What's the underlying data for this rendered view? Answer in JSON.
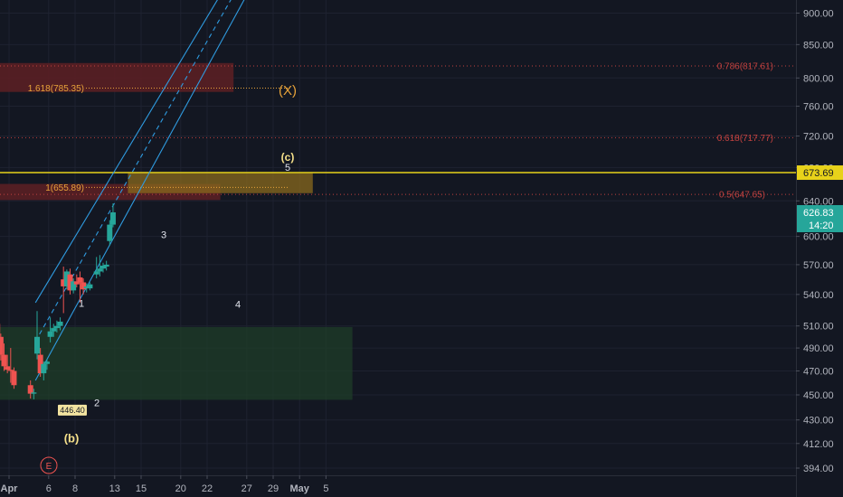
{
  "colors": {
    "background": "#131722",
    "grid": "#1e2230",
    "axis_text": "#b2b5be",
    "candle_up": "#26a69a",
    "candle_down": "#ef5350",
    "channel": "#2f9be0",
    "fib_text": "#e8a33a",
    "fib_red": "#c0413f",
    "resistance_line": "#e8d21a",
    "demand_zone": "#1f3d28",
    "supply_zone": "#5a1f24",
    "target_zone": "#8a6a1e",
    "price_tag": "#26a69a"
  },
  "chart_data": {
    "type": "candlestick",
    "price_axis": {
      "ticks": [
        394.0,
        412.0,
        430.0,
        450.0,
        470.0,
        490.0,
        510.0,
        540.0,
        570.0,
        600.0,
        640.0,
        680.0,
        720.0,
        760.0,
        800.0,
        850.0,
        900.0
      ],
      "tick_labels": [
        "394.00",
        "412.00",
        "430.00",
        "450.00",
        "470.00",
        "490.00",
        "510.00",
        "540.00",
        "570.00",
        "600.00",
        "640.00",
        "680.00",
        "720.00",
        "760.00",
        "800.00",
        "850.00",
        "900.00"
      ],
      "scale": "log",
      "range": [
        384,
        935
      ]
    },
    "time_axis": {
      "labels": [
        {
          "text": "Apr",
          "date": "2021-04-01"
        },
        {
          "text": "6",
          "date": "2021-04-06"
        },
        {
          "text": "8",
          "date": "2021-04-08"
        },
        {
          "text": "13",
          "date": "2021-04-13"
        },
        {
          "text": "15",
          "date": "2021-04-15"
        },
        {
          "text": "20",
          "date": "2021-04-20"
        },
        {
          "text": "22",
          "date": "2021-04-22"
        },
        {
          "text": "27",
          "date": "2021-04-27"
        },
        {
          "text": "29",
          "date": "2021-04-29"
        },
        {
          "text": "May",
          "date": "2021-05-03"
        },
        {
          "text": "5",
          "date": "2021-05-05"
        }
      ]
    },
    "current_price": {
      "value": 626.83,
      "label": "626.83",
      "countdown": "14:20"
    },
    "resistance_price": {
      "value": 673.69,
      "label": "673.69"
    },
    "candles": [
      {
        "t": 2021033111,
        "o": 523,
        "h": 524,
        "l": 508,
        "c": 512
      },
      {
        "t": 2021033113,
        "o": 512,
        "h": 514,
        "l": 496,
        "c": 500
      },
      {
        "t": 2021033115,
        "o": 500,
        "h": 503,
        "l": 479,
        "c": 484
      },
      {
        "t": 2021040109,
        "o": 484,
        "h": 494,
        "l": 470,
        "c": 474
      },
      {
        "t": 2021040111,
        "o": 474,
        "h": 484,
        "l": 468,
        "c": 471
      },
      {
        "t": 2021040113,
        "o": 471,
        "h": 490,
        "l": 460,
        "c": 470
      },
      {
        "t": 2021040115,
        "o": 470,
        "h": 473,
        "l": 455,
        "c": 458
      },
      {
        "t": 2021040509,
        "o": 458,
        "h": 462,
        "l": 447,
        "c": 451
      },
      {
        "t": 2021040511,
        "o": 451,
        "h": 455,
        "l": 446.4,
        "c": 452
      },
      {
        "t": 2021040513,
        "o": 485,
        "h": 524,
        "l": 480,
        "c": 500
      },
      {
        "t": 2021040515,
        "o": 484,
        "h": 490,
        "l": 465,
        "c": 468
      },
      {
        "t": 2021040609,
        "o": 468,
        "h": 478,
        "l": 462,
        "c": 476
      },
      {
        "t": 2021040611,
        "o": 476,
        "h": 480,
        "l": 471,
        "c": 478
      },
      {
        "t": 2021040613,
        "o": 500,
        "h": 518,
        "l": 495,
        "c": 505
      },
      {
        "t": 2021040615,
        "o": 505,
        "h": 512,
        "l": 500,
        "c": 508
      },
      {
        "t": 2021040709,
        "o": 508,
        "h": 515,
        "l": 504,
        "c": 510
      },
      {
        "t": 2021040711,
        "o": 510,
        "h": 518,
        "l": 506,
        "c": 514
      },
      {
        "t": 2021040713,
        "o": 555,
        "h": 568,
        "l": 522,
        "c": 548
      },
      {
        "t": 2021040715,
        "o": 548,
        "h": 565,
        "l": 545,
        "c": 563
      },
      {
        "t": 2021040809,
        "o": 560,
        "h": 566,
        "l": 540,
        "c": 544
      },
      {
        "t": 2021040811,
        "o": 544,
        "h": 556,
        "l": 541,
        "c": 553
      },
      {
        "t": 2021040813,
        "o": 553,
        "h": 560,
        "l": 547,
        "c": 550
      },
      {
        "t": 2021040815,
        "o": 557,
        "h": 563,
        "l": 532,
        "c": 552
      },
      {
        "t": 2021040909,
        "o": 552,
        "h": 556,
        "l": 540,
        "c": 545
      },
      {
        "t": 2021040911,
        "o": 546,
        "h": 551,
        "l": 542,
        "c": 548
      },
      {
        "t": 2021040913,
        "o": 546,
        "h": 552,
        "l": 544,
        "c": 550
      },
      {
        "t": 2021041209,
        "o": 560,
        "h": 578,
        "l": 556,
        "c": 563
      },
      {
        "t": 2021041211,
        "o": 563,
        "h": 580,
        "l": 558,
        "c": 566
      },
      {
        "t": 2021041213,
        "o": 566,
        "h": 572,
        "l": 562,
        "c": 569
      },
      {
        "t": 2021041215,
        "o": 568,
        "h": 574,
        "l": 564,
        "c": 570
      },
      {
        "t": 2021041309,
        "o": 595,
        "h": 618,
        "l": 590,
        "c": 613
      },
      {
        "t": 2021041311,
        "o": 613,
        "h": 637,
        "l": 610,
        "c": 626.83
      }
    ],
    "zones": [
      {
        "name": "demand",
        "from": "2021-03-31",
        "to": "2021-05-07",
        "low": 446,
        "high": 509
      },
      {
        "name": "supply-upper",
        "from": "2021-03-31",
        "to": "2021-04-25",
        "low": 780,
        "high": 822
      },
      {
        "name": "supply-lower",
        "from": "2021-03-31",
        "to": "2021-04-23",
        "low": 641,
        "high": 660
      },
      {
        "name": "target",
        "from": "2021-04-14",
        "to": "2021-05-04",
        "low": 649,
        "high": 673
      }
    ],
    "fib_levels": [
      {
        "label": "0.786(817.61)",
        "value": 817.61
      },
      {
        "label": "0.618(717.77)",
        "value": 717.77
      },
      {
        "label": "0.5(647.65)",
        "value": 647.65
      },
      {
        "label": "1.618(785.35)",
        "value": 785.35
      },
      {
        "label": "1(655.89)",
        "value": 655.89
      }
    ],
    "wave_labels": [
      {
        "text": "1",
        "date": "2021-04-05",
        "price": 528
      },
      {
        "text": "2",
        "date": "2021-04-05",
        "price": 441
      },
      {
        "text": "3",
        "date": "2021-04-07",
        "price": 598
      },
      {
        "text": "4",
        "date": "2021-04-12",
        "price": 527
      },
      {
        "text": "5",
        "date": "2021-04-14",
        "price": 676
      },
      {
        "text": "(c)",
        "date": "2021-04-14",
        "price": 688
      },
      {
        "text": "(X)",
        "date": "2021-04-14",
        "price": 776
      },
      {
        "text": "(b)",
        "date": "2021-04-01",
        "price": 413
      }
    ],
    "low_marker": {
      "label": "446.40",
      "value": 446.4
    },
    "event_marker": {
      "label": "E"
    },
    "channel": {
      "lower": {
        "from": {
          "date": "2021-04-05",
          "price": 462
        },
        "to": {
          "date": "2021-04-27",
          "price": 930
        }
      },
      "upper": {
        "from": {
          "date": "2021-04-05",
          "price": 532
        },
        "to": {
          "date": "2021-04-23",
          "price": 930
        }
      },
      "middle": {
        "from": {
          "date": "2021-04-05",
          "price": 496
        },
        "to": {
          "date": "2021-04-25",
          "price": 930
        }
      }
    }
  }
}
